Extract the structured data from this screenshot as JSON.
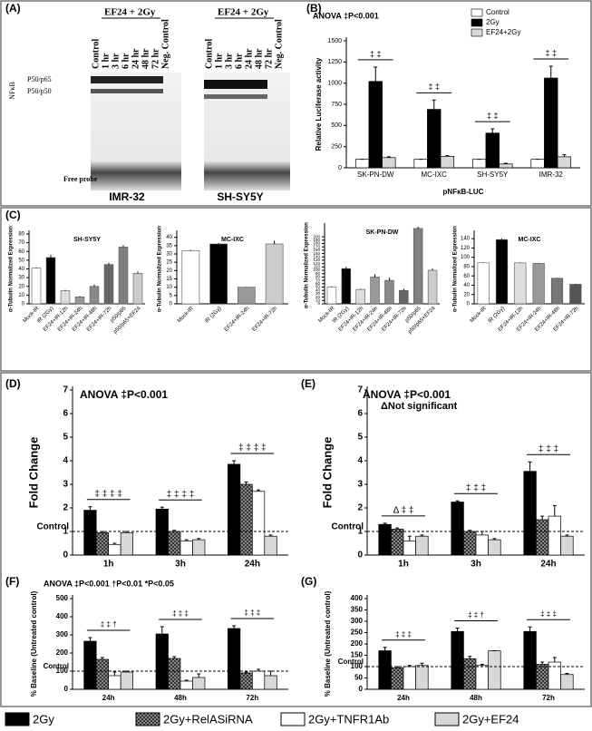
{
  "gel": {
    "label": "(A)",
    "treatment": "EF24 + 2Gy",
    "lanes": [
      "Control",
      "1 hr",
      "3 hr",
      "6 hr",
      "24 hr",
      "48 hr",
      "72 hr",
      "Neg. Control"
    ],
    "nfkb": "NFκB",
    "bands": [
      "P50/p65",
      "P50/p50"
    ],
    "free_probe": "Free probe",
    "cell_lines": [
      "IMR-32",
      "SH-SY5Y"
    ]
  },
  "chart_data": [
    {
      "type": "bar",
      "label": "(B)",
      "title": "ANOVA ‡P<0.001",
      "y_label": "Relative  Luciferase activity",
      "x_label": "pNFκB-LUC",
      "categories": [
        "SK-PN-DW",
        "MC-IXC",
        "SH-SY5Y",
        "IMR-32"
      ],
      "series": [
        {
          "name": "Control",
          "color": "#ffffff",
          "values": [
            100,
            100,
            100,
            100
          ],
          "errors": [
            0,
            0,
            0,
            0
          ]
        },
        {
          "name": "2Gy",
          "color": "#000000",
          "values": [
            1020,
            690,
            410,
            1060
          ],
          "errors": [
            170,
            110,
            50,
            140
          ]
        },
        {
          "name": "EF24+2Gy",
          "color": "#d8d8d8",
          "values": [
            120,
            135,
            45,
            130
          ],
          "errors": [
            10,
            10,
            8,
            25
          ]
        }
      ],
      "significance": [
        "‡  ‡",
        "‡  ‡",
        "‡  ‡",
        "‡  ‡"
      ],
      "ylim": [
        0,
        1500
      ],
      "yticks": [
        0,
        250,
        500,
        750,
        1000,
        1250,
        1500
      ]
    },
    {
      "type": "bar",
      "label": "(C)",
      "title": "SH-SY5Y",
      "y_label": "α-Tubulin Normalized Expression",
      "categories": [
        "Mock-IR",
        "IR (2Gy)",
        "EF24+IR-12h",
        "EF24+IR-24h",
        "EF24+IR-48h",
        "EF24+IR-72h",
        "p50/p65",
        "p50/p65+EF24"
      ],
      "values": [
        41,
        53,
        15,
        8,
        20,
        45,
        65,
        35
      ],
      "errors": [
        1,
        3,
        1,
        1,
        2,
        2,
        2,
        2
      ],
      "colors": [
        "#ffffff",
        "#000000",
        "#dddddd",
        "#999999",
        "#888888",
        "#666666",
        "#808080",
        "#cccccc"
      ],
      "ylim": [
        0,
        80
      ],
      "yticks": [
        0,
        10,
        20,
        30,
        40,
        50,
        60,
        70,
        80
      ]
    },
    {
      "type": "bar",
      "title": "MC-IXC",
      "y_label": "α-Tubulin Normalized Expression",
      "categories": [
        "Mock-IR",
        "IR (2Gy)",
        "EF24+IR-24h",
        "EF24+IR-72h"
      ],
      "values": [
        32,
        36,
        10,
        36
      ],
      "errors": [
        0.5,
        0.5,
        0.3,
        2
      ],
      "colors": [
        "#ffffff",
        "#000000",
        "#999999",
        "#cccccc"
      ],
      "ylim": [
        0,
        42
      ],
      "yticks": [
        0,
        5,
        10,
        15,
        20,
        25,
        30,
        35,
        40
      ]
    },
    {
      "type": "bar",
      "title": "SK-PN-DW",
      "y_label": "α-Tubulin Normalized Expression",
      "categories": [
        "Mock-IR",
        "IR (2Gy)",
        "EF24+IR-12h",
        "EF24+IR-24h",
        "EF24+IR-48h",
        "EF24+IR-72h",
        "p50/p65",
        "p50/p65+EF24"
      ],
      "values": [
        50,
        105,
        43,
        80,
        70,
        40,
        225,
        100
      ],
      "errors": [
        2,
        5,
        2,
        8,
        8,
        5,
        5,
        5
      ],
      "colors": [
        "#ffffff",
        "#000000",
        "#dddddd",
        "#999999",
        "#888888",
        "#666666",
        "#808080",
        "#cccccc"
      ],
      "ylim": [
        0,
        230
      ],
      "yticks": [
        0,
        10,
        20,
        30,
        40,
        50,
        60,
        70,
        80,
        90,
        100,
        110,
        120,
        130,
        140,
        150,
        160,
        170,
        180,
        190,
        200
      ]
    },
    {
      "type": "bar",
      "title": "MC-IXC",
      "y_label": "α-Tubulin Normalized Expression",
      "categories": [
        "Mock-IR",
        "IR (2Gy)",
        "EF24+IR-12h",
        "EF24+IR-24h",
        "EF24+IR-48h",
        "EF24+IR-72h"
      ],
      "values": [
        88,
        138,
        88,
        87,
        55,
        42
      ],
      "errors": [
        1,
        2,
        1,
        1,
        1,
        1
      ],
      "colors": [
        "#ffffff",
        "#000000",
        "#dddddd",
        "#999999",
        "#777777",
        "#555555"
      ],
      "ylim": [
        0,
        150
      ],
      "yticks": [
        0,
        20,
        40,
        60,
        80,
        100,
        120,
        140
      ]
    },
    {
      "type": "bar",
      "label": "(D)",
      "title": "ANOVA ‡P<0.001",
      "y_label": "Fold Change",
      "categories": [
        "1h",
        "3h",
        "24h"
      ],
      "control_line": 1,
      "control_label": "Control",
      "series": [
        {
          "name": "2Gy",
          "color": "#000000",
          "values": [
            1.9,
            1.95,
            3.85
          ],
          "errors": [
            0.15,
            0.08,
            0.15
          ]
        },
        {
          "name": "2Gy+RelASiRNA",
          "color": "#606060",
          "pattern": "checker",
          "values": [
            0.95,
            1.0,
            3.0
          ],
          "errors": [
            0.05,
            0.05,
            0.1
          ]
        },
        {
          "name": "2Gy+TNFR1Ab",
          "color": "#ffffff",
          "values": [
            0.45,
            0.6,
            2.7
          ],
          "errors": [
            0.05,
            0.05,
            0.06
          ]
        },
        {
          "name": "2Gy+EF24",
          "color": "#d8d8d8",
          "values": [
            0.95,
            0.65,
            0.8
          ],
          "errors": [
            0.05,
            0.05,
            0.05
          ]
        }
      ],
      "significance": [
        "‡ ‡ ‡ ‡",
        "‡ ‡ ‡ ‡",
        "‡ ‡ ‡ ‡"
      ],
      "ylim": [
        0,
        7
      ],
      "yticks": [
        0,
        1,
        2,
        3,
        4,
        5,
        6,
        7
      ]
    },
    {
      "type": "bar",
      "label": "(E)",
      "title": "ANOVA ‡P<0.001",
      "subtitle": "ΔNot significant",
      "y_label": "Fold Change",
      "categories": [
        "1h",
        "3h",
        "24h"
      ],
      "control_line": 1,
      "control_label": "Control",
      "series": [
        {
          "name": "2Gy",
          "color": "#000000",
          "values": [
            1.3,
            2.25,
            3.55
          ],
          "errors": [
            0.05,
            0.05,
            0.4
          ]
        },
        {
          "name": "2Gy+RelASiRNA",
          "color": "#606060",
          "pattern": "checker",
          "values": [
            1.1,
            1.0,
            1.5
          ],
          "errors": [
            0.05,
            0.05,
            0.15
          ]
        },
        {
          "name": "2Gy+TNFR1Ab",
          "color": "#ffffff",
          "values": [
            0.6,
            0.85,
            1.65
          ],
          "errors": [
            0.2,
            0.15,
            0.45
          ]
        },
        {
          "name": "2Gy+EF24",
          "color": "#d8d8d8",
          "values": [
            0.8,
            0.65,
            0.8
          ],
          "errors": [
            0.05,
            0.05,
            0.05
          ]
        }
      ],
      "significance": [
        "Δ ‡ ‡",
        "‡ ‡ ‡",
        "‡ ‡ ‡"
      ],
      "ylim": [
        0,
        7
      ],
      "yticks": [
        0,
        1,
        2,
        3,
        4,
        5,
        6,
        7
      ]
    },
    {
      "type": "bar",
      "label": "(F)",
      "title": "ANOVA ‡P<0.001  †P<0.01  *P<0.05",
      "y_label": "% Baseline (Untreated control)",
      "categories": [
        "24h",
        "48h",
        "72h"
      ],
      "control_line": 100,
      "control_label": "Control",
      "series": [
        {
          "name": "2Gy",
          "color": "#000000",
          "values": [
            265,
            305,
            335
          ],
          "errors": [
            20,
            40,
            15
          ]
        },
        {
          "name": "2Gy+RelASiRNA",
          "color": "#606060",
          "pattern": "checker",
          "values": [
            165,
            170,
            90
          ],
          "errors": [
            10,
            10,
            5
          ]
        },
        {
          "name": "2Gy+TNFR1Ab",
          "color": "#ffffff",
          "values": [
            75,
            45,
            100
          ],
          "errors": [
            20,
            5,
            10
          ]
        },
        {
          "name": "2Gy+EF24",
          "color": "#d8d8d8",
          "values": [
            95,
            65,
            75
          ],
          "errors": [
            5,
            20,
            25
          ]
        }
      ],
      "significance": [
        "‡ ‡ †",
        "‡ ‡ ‡",
        "‡ ‡ ‡"
      ],
      "ylim": [
        0,
        500
      ],
      "yticks": [
        0,
        100,
        200,
        300,
        400,
        500
      ]
    },
    {
      "type": "bar",
      "label": "(G)",
      "y_label": "% Baseline (Untreated control)",
      "categories": [
        "24h",
        "48h",
        "72h"
      ],
      "control_line": 100,
      "control_label": "Control",
      "series": [
        {
          "name": "2Gy",
          "color": "#000000",
          "values": [
            170,
            255,
            255
          ],
          "errors": [
            15,
            15,
            20
          ]
        },
        {
          "name": "2Gy+RelASiRNA",
          "color": "#606060",
          "pattern": "checker",
          "values": [
            95,
            135,
            110
          ],
          "errors": [
            5,
            10,
            10
          ]
        },
        {
          "name": "2Gy+TNFR1Ab",
          "color": "#ffffff",
          "values": [
            100,
            105,
            120
          ],
          "errors": [
            5,
            5,
            20
          ]
        },
        {
          "name": "2Gy+EF24",
          "color": "#d8d8d8",
          "values": [
            105,
            170,
            65
          ],
          "errors": [
            10,
            0,
            5
          ]
        }
      ],
      "significance": [
        "‡ ‡ ‡",
        "‡ ‡ †",
        "‡ ‡ ‡"
      ],
      "ylim": [
        0,
        400
      ],
      "yticks": [
        0,
        50,
        100,
        150,
        200,
        250,
        300,
        350,
        400
      ]
    }
  ]
}
